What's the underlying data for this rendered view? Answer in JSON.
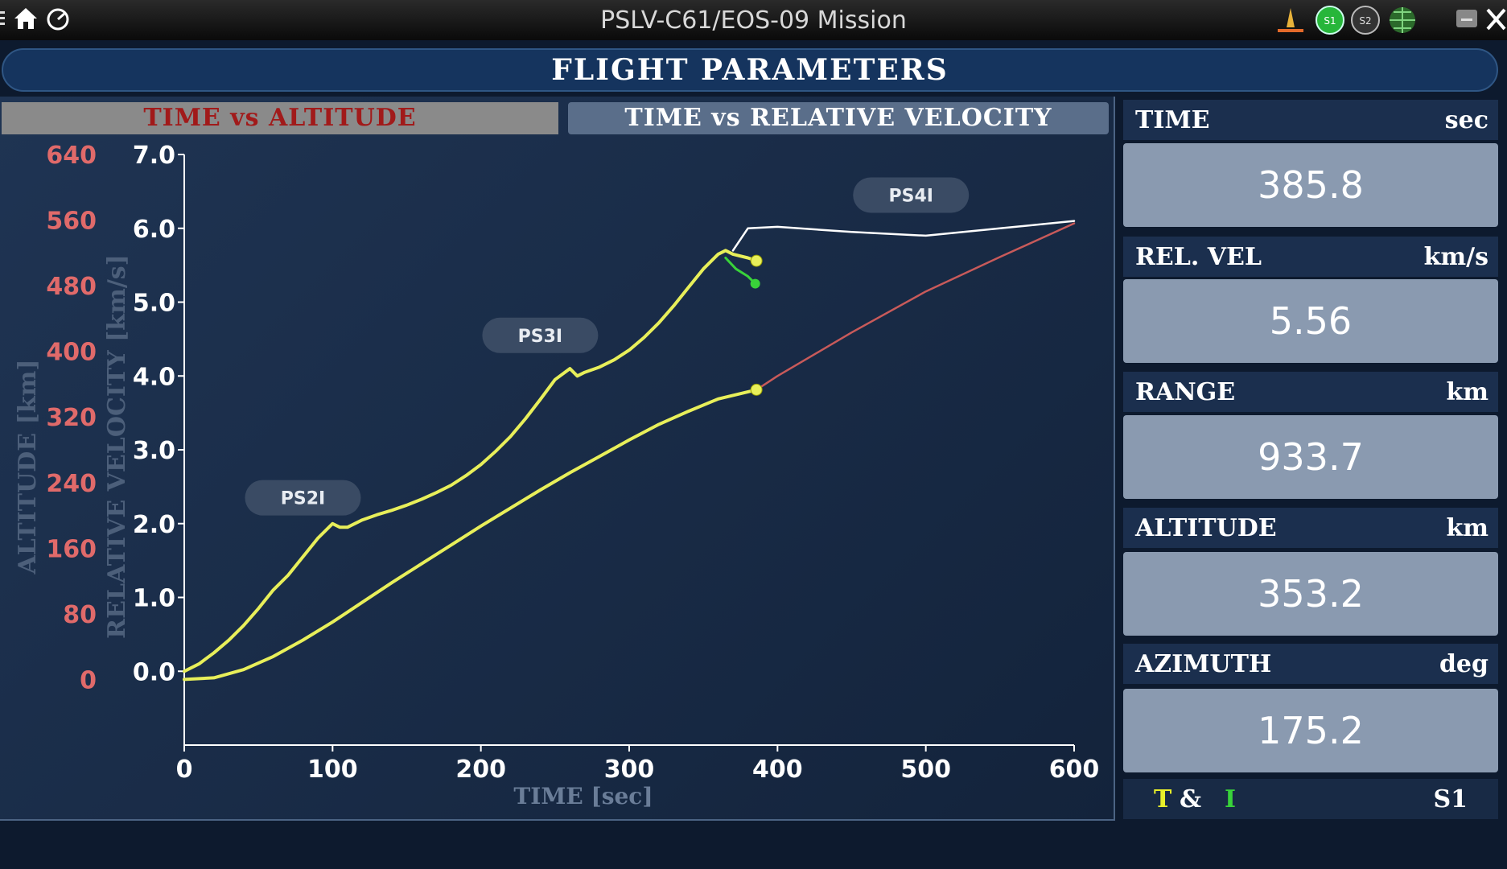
{
  "window": {
    "title": "PSLV-C61/EOS-09 Mission"
  },
  "banner": {
    "title": "FLIGHT PARAMETERS"
  },
  "tabs": {
    "altitude": "TIME vs ALTITUDE",
    "velocity": "TIME vs RELATIVE VELOCITY"
  },
  "colors": {
    "altitude_axis": "#e06a6a",
    "velocity_axis": "#ffffff",
    "actual": "#e8ef5a",
    "predicted": "#ffffff",
    "altitude_predicted": "#c85a5a",
    "stage_events": "#39d23a"
  },
  "chart_data": {
    "type": "line",
    "title": "",
    "xlabel": "TIME [sec]",
    "ylabel_left": "ALTITUDE [km]",
    "ylabel_right": "RELATIVE VELOCITY [km/s]",
    "xlim": [
      0,
      600
    ],
    "x_ticks": [
      "0",
      "100",
      "200",
      "300",
      "400",
      "500",
      "600"
    ],
    "altitude_ticks": [
      "0",
      "80",
      "160",
      "240",
      "320",
      "400",
      "480",
      "560",
      "640"
    ],
    "altitude_lim": [
      -80,
      640
    ],
    "velocity_ticks": [
      "0.0",
      "1.0",
      "2.0",
      "3.0",
      "4.0",
      "5.0",
      "6.0",
      "7.0"
    ],
    "velocity_lim": [
      -1,
      7
    ],
    "stage_labels": [
      {
        "text": "PS2I",
        "x": 80,
        "v": 2.35
      },
      {
        "text": "PS3I",
        "x": 240,
        "v": 4.55
      },
      {
        "text": "PS4I",
        "x": 490,
        "v": 6.45
      }
    ],
    "series": [
      {
        "name": "",
        "axis": "velocity",
        "role": "actual",
        "x": [
          0,
          10,
          20,
          30,
          40,
          50,
          60,
          70,
          80,
          90,
          100,
          105,
          110,
          120,
          130,
          140,
          150,
          160,
          170,
          180,
          190,
          200,
          210,
          220,
          230,
          240,
          250,
          260,
          265,
          270,
          280,
          290,
          300,
          310,
          320,
          330,
          340,
          350,
          360,
          365,
          370,
          380,
          385.8
        ],
        "y": [
          0.0,
          0.1,
          0.25,
          0.42,
          0.62,
          0.85,
          1.1,
          1.3,
          1.55,
          1.8,
          2.0,
          1.95,
          1.95,
          2.05,
          2.12,
          2.18,
          2.25,
          2.33,
          2.42,
          2.52,
          2.65,
          2.8,
          2.98,
          3.18,
          3.42,
          3.68,
          3.95,
          4.1,
          4.0,
          4.05,
          4.12,
          4.22,
          4.35,
          4.52,
          4.72,
          4.95,
          5.2,
          5.45,
          5.65,
          5.7,
          5.65,
          5.6,
          5.56
        ]
      },
      {
        "name": "",
        "axis": "velocity",
        "role": "predicted",
        "x": [
          370,
          380,
          400,
          450,
          500,
          550,
          600
        ],
        "y": [
          5.7,
          6.0,
          6.02,
          5.95,
          5.9,
          6.0,
          6.1
        ]
      },
      {
        "name": "",
        "axis": "velocity",
        "role": "stage_event",
        "x": [
          365,
          372,
          380,
          385
        ],
        "y": [
          5.6,
          5.45,
          5.35,
          5.25
        ]
      },
      {
        "name": "",
        "axis": "altitude",
        "role": "predicted",
        "x": [
          385.8,
          400,
          450,
          500,
          550,
          600
        ],
        "y": [
          353.2,
          370,
          423,
          473,
          515,
          556
        ]
      },
      {
        "name": "",
        "axis": "altitude",
        "role": "actual",
        "x": [
          0,
          20,
          40,
          60,
          80,
          100,
          120,
          140,
          160,
          180,
          200,
          220,
          240,
          260,
          280,
          300,
          320,
          340,
          360,
          385.8
        ],
        "y": [
          0,
          2,
          12,
          28,
          48,
          70,
          94,
          118,
          141,
          164,
          187,
          209,
          231,
          252,
          272,
          292,
          311,
          327,
          342,
          353.2
        ]
      }
    ]
  },
  "side": {
    "time": {
      "label": "TIME",
      "unit": "sec",
      "value": "385.8"
    },
    "rel_vel": {
      "label": "REL. VEL",
      "unit": "km/s",
      "value": "5.56"
    },
    "range": {
      "label": "RANGE",
      "unit": "km",
      "value": "933.7"
    },
    "altitude": {
      "label": "ALTITUDE",
      "unit": "km",
      "value": "353.2"
    },
    "azimuth": {
      "label": "AZIMUTH",
      "unit": "deg",
      "value": "175.2"
    }
  },
  "footer": {
    "t": "T",
    "amp": "&",
    "i": "I",
    "s1": "S1"
  }
}
